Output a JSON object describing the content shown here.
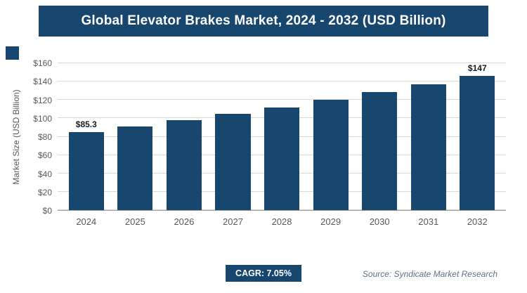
{
  "title": "Global Elevator Brakes Market, 2024 - 2032 (USD Billion)",
  "colors": {
    "accent": "#17466F",
    "gridline": "#D9D9D9",
    "axis_text": "#595959"
  },
  "chart_data": {
    "type": "bar",
    "title": "Global Elevator Brakes Market, 2024 - 2032 (USD Billion)",
    "categories": [
      "2024",
      "2025",
      "2026",
      "2027",
      "2028",
      "2029",
      "2030",
      "2031",
      "2032"
    ],
    "values": [
      85.3,
      91.3,
      97.7,
      104.6,
      112.0,
      119.9,
      128.3,
      137.4,
      147.0
    ],
    "bar_labels": [
      "$85.3",
      "",
      "",
      "",
      "",
      "",
      "",
      "",
      "$147"
    ],
    "xlabel": "",
    "ylabel": "Market Size (USD Billion)",
    "ylim": [
      0,
      160
    ],
    "yticks": [
      "$0",
      "$20",
      "$40",
      "$60",
      "$80",
      "$100",
      "$120",
      "$140",
      "$160"
    ],
    "grid": true,
    "legend_position": "none"
  },
  "footer": {
    "cagr_label": "CAGR: 7.05%",
    "source": "Source: Syndicate Market Research"
  }
}
